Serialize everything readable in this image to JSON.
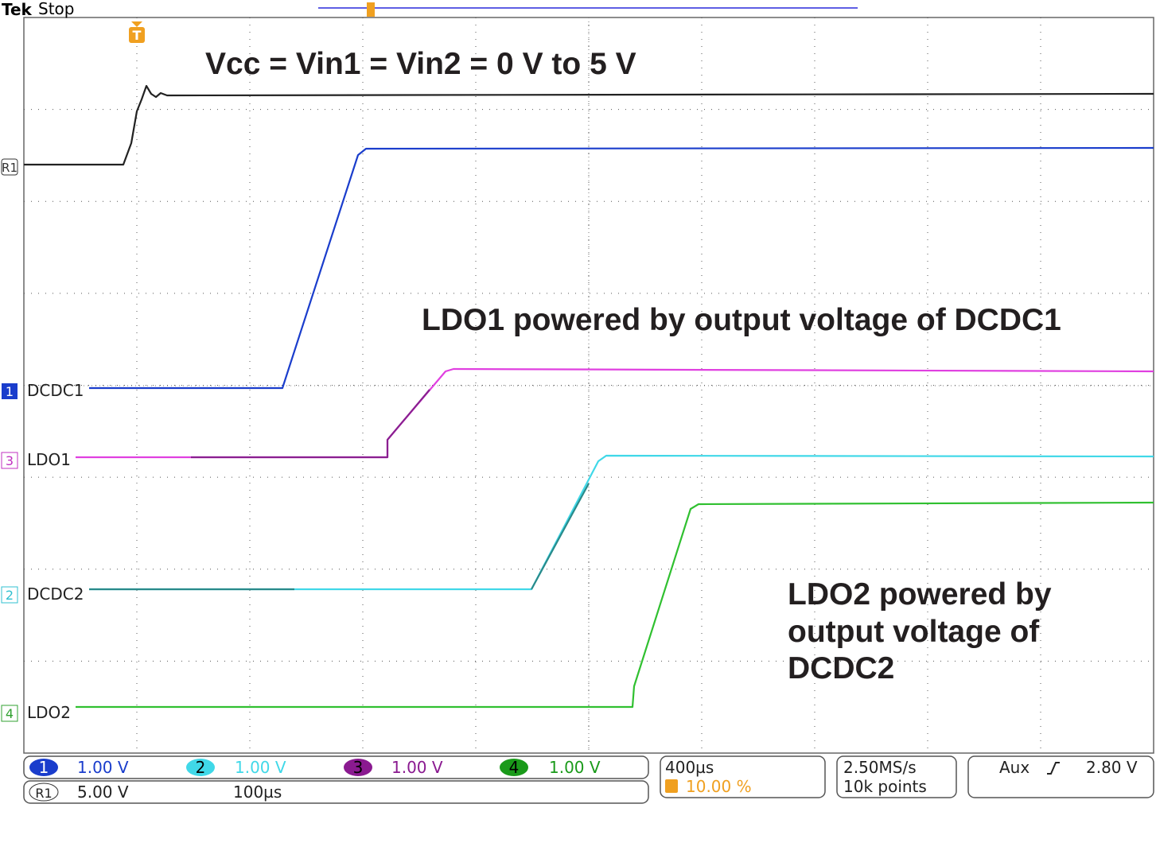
{
  "header": {
    "brand": "Tek",
    "status": "Stop"
  },
  "annotations": {
    "vcc": "Vcc = Vin1 = Vin2 = 0 V to 5 V",
    "ldo1": "LDO1 powered by output voltage of DCDC1",
    "ldo2": [
      "LDO2 powered by",
      "output voltage of",
      "DCDC2"
    ]
  },
  "traces": [
    {
      "marker": "R1"
    },
    {
      "marker": "1",
      "label": "DCDC1"
    },
    {
      "marker": "3",
      "label": "LDO1"
    },
    {
      "marker": "2",
      "label": "DCDC2"
    },
    {
      "marker": "4",
      "label": "LDO2"
    }
  ],
  "channels": [
    {
      "id": "1",
      "scale": "1.00 V"
    },
    {
      "id": "2",
      "scale": "1.00 V"
    },
    {
      "id": "3",
      "scale": "1.00 V"
    },
    {
      "id": "4",
      "scale": "1.00 V"
    }
  ],
  "reference": {
    "id": "R1",
    "scale": "5.00 V",
    "timebase": "100µs"
  },
  "horizontal": {
    "timebase": "400µs",
    "trigger_position": "10.00 %"
  },
  "acquisition": {
    "sample_rate": "2.50MS/s",
    "record_length": "10k points"
  },
  "trigger": {
    "source": "Aux",
    "level": "2.80 V"
  }
}
